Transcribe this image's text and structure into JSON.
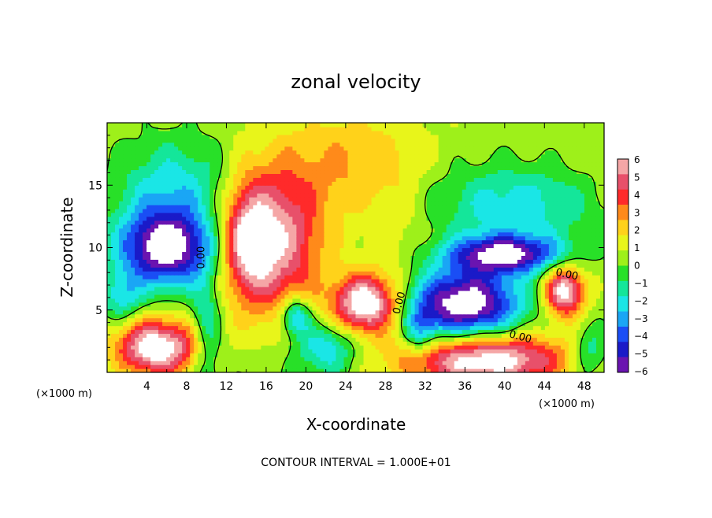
{
  "chart_data": {
    "type": "heatmap",
    "title": "zonal velocity",
    "xlabel": "X-coordinate",
    "ylabel": "Z-coordinate",
    "x_unit_left": "(×1000 m)",
    "x_unit_right": "(×1000 m)",
    "xlim": [
      0,
      50
    ],
    "ylim": [
      0,
      20
    ],
    "xticks": [
      4,
      8,
      12,
      16,
      20,
      24,
      28,
      32,
      36,
      40,
      44,
      48
    ],
    "yticks": [
      5,
      10,
      15
    ],
    "colorbar": {
      "min": -6,
      "max": 6,
      "ticks": [
        "6",
        "5",
        "4",
        "3",
        "2",
        "1",
        "0",
        "−1",
        "−2",
        "−3",
        "−4",
        "−5",
        "−6"
      ],
      "colors": [
        "#f5a6a6",
        "#e8506a",
        "#ff2a2a",
        "#ff8a1a",
        "#ffd21a",
        "#e8f51a",
        "#9ef01a",
        "#28e028",
        "#14e69a",
        "#1ae6e6",
        "#1aa6f5",
        "#1a4ef5",
        "#1a1ac8",
        "#6a14b0"
      ]
    },
    "contour_labels": [
      {
        "text": "0.00",
        "x": 9.8,
        "y": 9.2,
        "rotate": -90
      },
      {
        "text": "0.00",
        "x": 29.7,
        "y": 5.5,
        "rotate": -75
      },
      {
        "text": "0.00",
        "x": 41.5,
        "y": 2.6,
        "rotate": 15
      },
      {
        "text": "0.00",
        "x": 46.2,
        "y": 7.6,
        "rotate": 12
      }
    ],
    "footer": "CONTOUR INTERVAL = 1.000E+01",
    "blobs": [
      {
        "x": 16.5,
        "y": 10.5,
        "rx": 5.0,
        "ry": 6.0,
        "v": 5.6
      },
      {
        "x": 14.0,
        "y": 10.8,
        "rx": 2.2,
        "ry": 4.0,
        "v": 3.2
      },
      {
        "x": 6.0,
        "y": 10.0,
        "rx": 4.8,
        "ry": 3.0,
        "v": -7.5
      },
      {
        "x": 5.0,
        "y": 2.0,
        "rx": 4.2,
        "ry": 2.3,
        "v": 7.0
      },
      {
        "x": 26.0,
        "y": 5.5,
        "rx": 3.2,
        "ry": 2.3,
        "v": 7.0
      },
      {
        "x": 31.5,
        "y": 3.2,
        "rx": 1.6,
        "ry": 2.0,
        "v": -2.5
      },
      {
        "x": 36.0,
        "y": 5.5,
        "rx": 5.5,
        "ry": 2.8,
        "v": -7.5
      },
      {
        "x": 40.0,
        "y": 9.5,
        "rx": 5.5,
        "ry": 1.5,
        "v": -6.5
      },
      {
        "x": 38.0,
        "y": 1.0,
        "rx": 8.5,
        "ry": 2.2,
        "v": 7.0
      },
      {
        "x": 46.0,
        "y": 6.5,
        "rx": 2.0,
        "ry": 2.0,
        "v": 6.5
      },
      {
        "x": 7.0,
        "y": 15.0,
        "rx": 6.5,
        "ry": 4.0,
        "v": -3.0
      },
      {
        "x": 41.0,
        "y": 13.5,
        "rx": 8.5,
        "ry": 3.5,
        "v": -3.0
      },
      {
        "x": 24.5,
        "y": 17.0,
        "rx": 6.0,
        "ry": 4.0,
        "v": 1.6
      },
      {
        "x": 22.0,
        "y": 2.0,
        "rx": 3.0,
        "ry": 2.0,
        "v": -3.0
      },
      {
        "x": 10.0,
        "y": 3.5,
        "rx": 1.5,
        "ry": 4.5,
        "v": -2.5
      },
      {
        "x": 19.0,
        "y": 4.5,
        "rx": 1.5,
        "ry": 1.5,
        "v": -4.0
      },
      {
        "x": 48.5,
        "y": 1.5,
        "rx": 1.8,
        "ry": 2.0,
        "v": -2.5
      },
      {
        "x": 29.0,
        "y": 11.0,
        "rx": 3.0,
        "ry": 6.0,
        "v": 0.8
      },
      {
        "x": 1.5,
        "y": 6.0,
        "rx": 2.0,
        "ry": 2.0,
        "v": -2.5
      }
    ]
  }
}
